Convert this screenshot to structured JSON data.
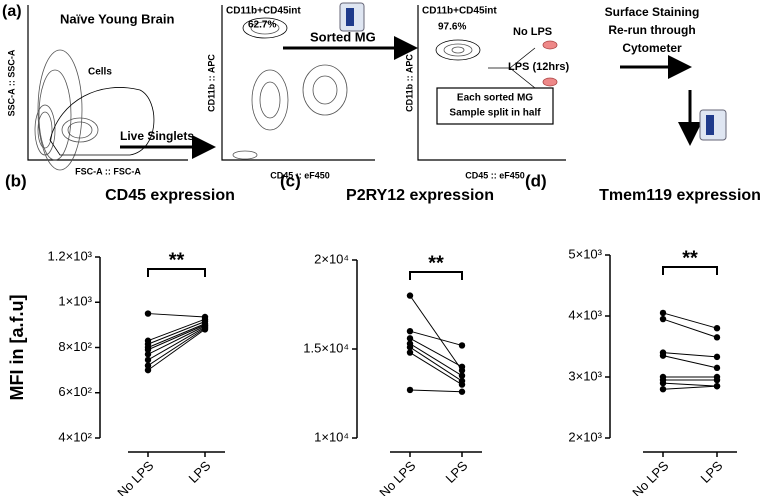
{
  "panel_a": {
    "label": "(a)",
    "plot1_title": "Naïve Young Brain",
    "plot1_ylabel": "SSC-A :: SSC-A",
    "plot1_xlabel": "FSC-A :: FSC-A",
    "plot1_gate": "Cells",
    "arrow1": "Live Singlets",
    "plot2_gate": "CD11b+CD45int",
    "plot2_pct": "62.7%",
    "plot2_ylabel": "CD11b :: APC",
    "plot2_xlabel": "CD45 :: eF450",
    "arrow2": "Sorted MG",
    "plot3_gate": "CD11b+CD45int",
    "plot3_pct": "97.6%",
    "plot3_ylabel": "CD11b :: APC",
    "plot3_xlabel": "CD45 :: eF450",
    "branch1": "No LPS",
    "branch2": "LPS (12hrs)",
    "split_note": [
      "Each sorted MG",
      "Sample split in half"
    ],
    "final_step": [
      "Surface Staining",
      "Re-run through",
      "Cytometer"
    ]
  },
  "chart_data": [
    {
      "type": "line",
      "panel_label": "(b)",
      "title": "CD45 expression",
      "y_label": "MFI in [a.f.u]",
      "significance": "**",
      "color": "#000000",
      "categories": [
        "No LPS",
        "LPS"
      ],
      "ylim": [
        400,
        1200
      ],
      "yticks": [
        {
          "value": 400,
          "label": "4×10²"
        },
        {
          "value": 600,
          "label": "6×10²"
        },
        {
          "value": 800,
          "label": "8×10²"
        },
        {
          "value": 1000,
          "label": "1×10³"
        },
        {
          "value": 1200,
          "label": "1.2×10³"
        }
      ],
      "series": [
        {
          "values": [
            950,
            935
          ]
        },
        {
          "values": [
            830,
            925
          ]
        },
        {
          "values": [
            815,
            915
          ]
        },
        {
          "values": [
            800,
            905
          ]
        },
        {
          "values": [
            790,
            900
          ]
        },
        {
          "values": [
            770,
            895
          ]
        },
        {
          "values": [
            745,
            890
          ]
        },
        {
          "values": [
            720,
            885
          ]
        },
        {
          "values": [
            700,
            880
          ]
        }
      ]
    },
    {
      "type": "line",
      "panel_label": "(c)",
      "title": "P2RY12 expression",
      "significance": "**",
      "color": "#000000",
      "categories": [
        "No LPS",
        "LPS"
      ],
      "ylim": [
        10000,
        20000
      ],
      "yticks": [
        {
          "value": 10000,
          "label": "1×10⁴"
        },
        {
          "value": 15000,
          "label": "1.5×10⁴"
        },
        {
          "value": 20000,
          "label": "2×10⁴"
        }
      ],
      "series": [
        {
          "values": [
            18000,
            13800
          ]
        },
        {
          "values": [
            16000,
            15200
          ]
        },
        {
          "values": [
            15600,
            14000
          ]
        },
        {
          "values": [
            15300,
            13500
          ]
        },
        {
          "values": [
            15100,
            13200
          ]
        },
        {
          "values": [
            14800,
            13000
          ]
        },
        {
          "values": [
            12700,
            12600
          ]
        }
      ]
    },
    {
      "type": "line",
      "panel_label": "(d)",
      "title": "Tmem119 expression",
      "significance": "**",
      "color": "#000000",
      "categories": [
        "No LPS",
        "LPS"
      ],
      "ylim": [
        2000,
        5000
      ],
      "yticks": [
        {
          "value": 2000,
          "label": "2×10³"
        },
        {
          "value": 3000,
          "label": "3×10³"
        },
        {
          "value": 4000,
          "label": "4×10³"
        },
        {
          "value": 5000,
          "label": "5×10³"
        }
      ],
      "series": [
        {
          "values": [
            4050,
            3800
          ]
        },
        {
          "values": [
            3950,
            3650
          ]
        },
        {
          "values": [
            3400,
            3330
          ]
        },
        {
          "values": [
            3350,
            3150
          ]
        },
        {
          "values": [
            3000,
            3000
          ]
        },
        {
          "values": [
            2950,
            2950
          ]
        },
        {
          "values": [
            2900,
            2850
          ]
        },
        {
          "values": [
            2800,
            2850
          ]
        }
      ]
    }
  ]
}
